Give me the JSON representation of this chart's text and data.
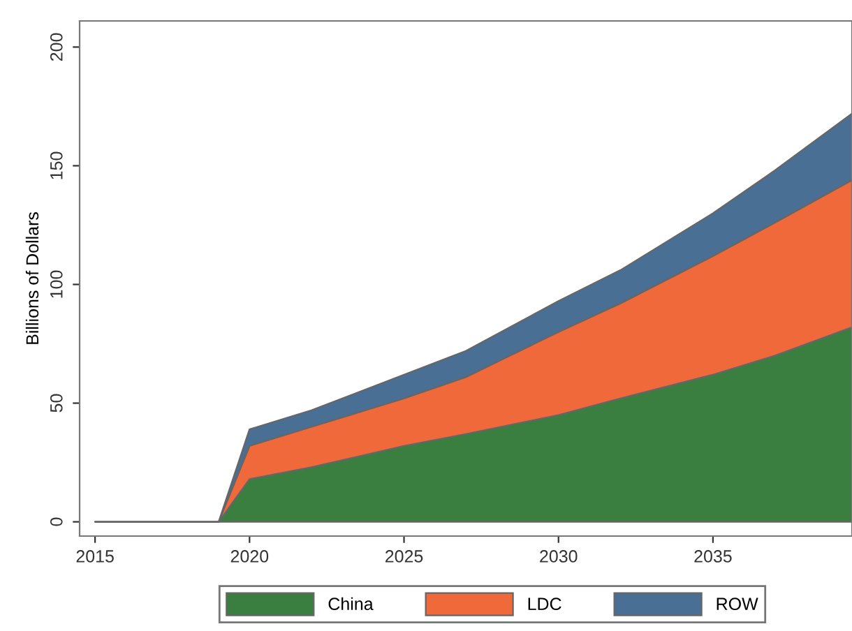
{
  "chart_data": {
    "type": "area",
    "stacked": true,
    "ylabel": "Billions of Dollars",
    "x": [
      2015,
      2019,
      2020,
      2022,
      2025,
      2027,
      2030,
      2032,
      2035,
      2037,
      2039.5
    ],
    "series": [
      {
        "name": "China",
        "color": "#3a7f3f",
        "values": [
          0,
          0,
          18,
          23,
          32,
          37,
          45,
          52,
          62,
          70,
          82
        ]
      },
      {
        "name": "LDC",
        "color": "#f0693a",
        "values": [
          0,
          0,
          14,
          17,
          20,
          24,
          35,
          40,
          50,
          56,
          62
        ]
      },
      {
        "name": "ROW",
        "color": "#4a6f94",
        "values": [
          0,
          0,
          7,
          7,
          10,
          11,
          13,
          14,
          18,
          22,
          28
        ]
      }
    ],
    "xlim": [
      2014.5,
      2039.5
    ],
    "xticks": [
      2015,
      2020,
      2025,
      2030,
      2035
    ],
    "ylim": [
      -6,
      211
    ],
    "yticks": [
      0,
      50,
      100,
      150,
      200
    ],
    "grid": false,
    "legend": "bottom"
  }
}
